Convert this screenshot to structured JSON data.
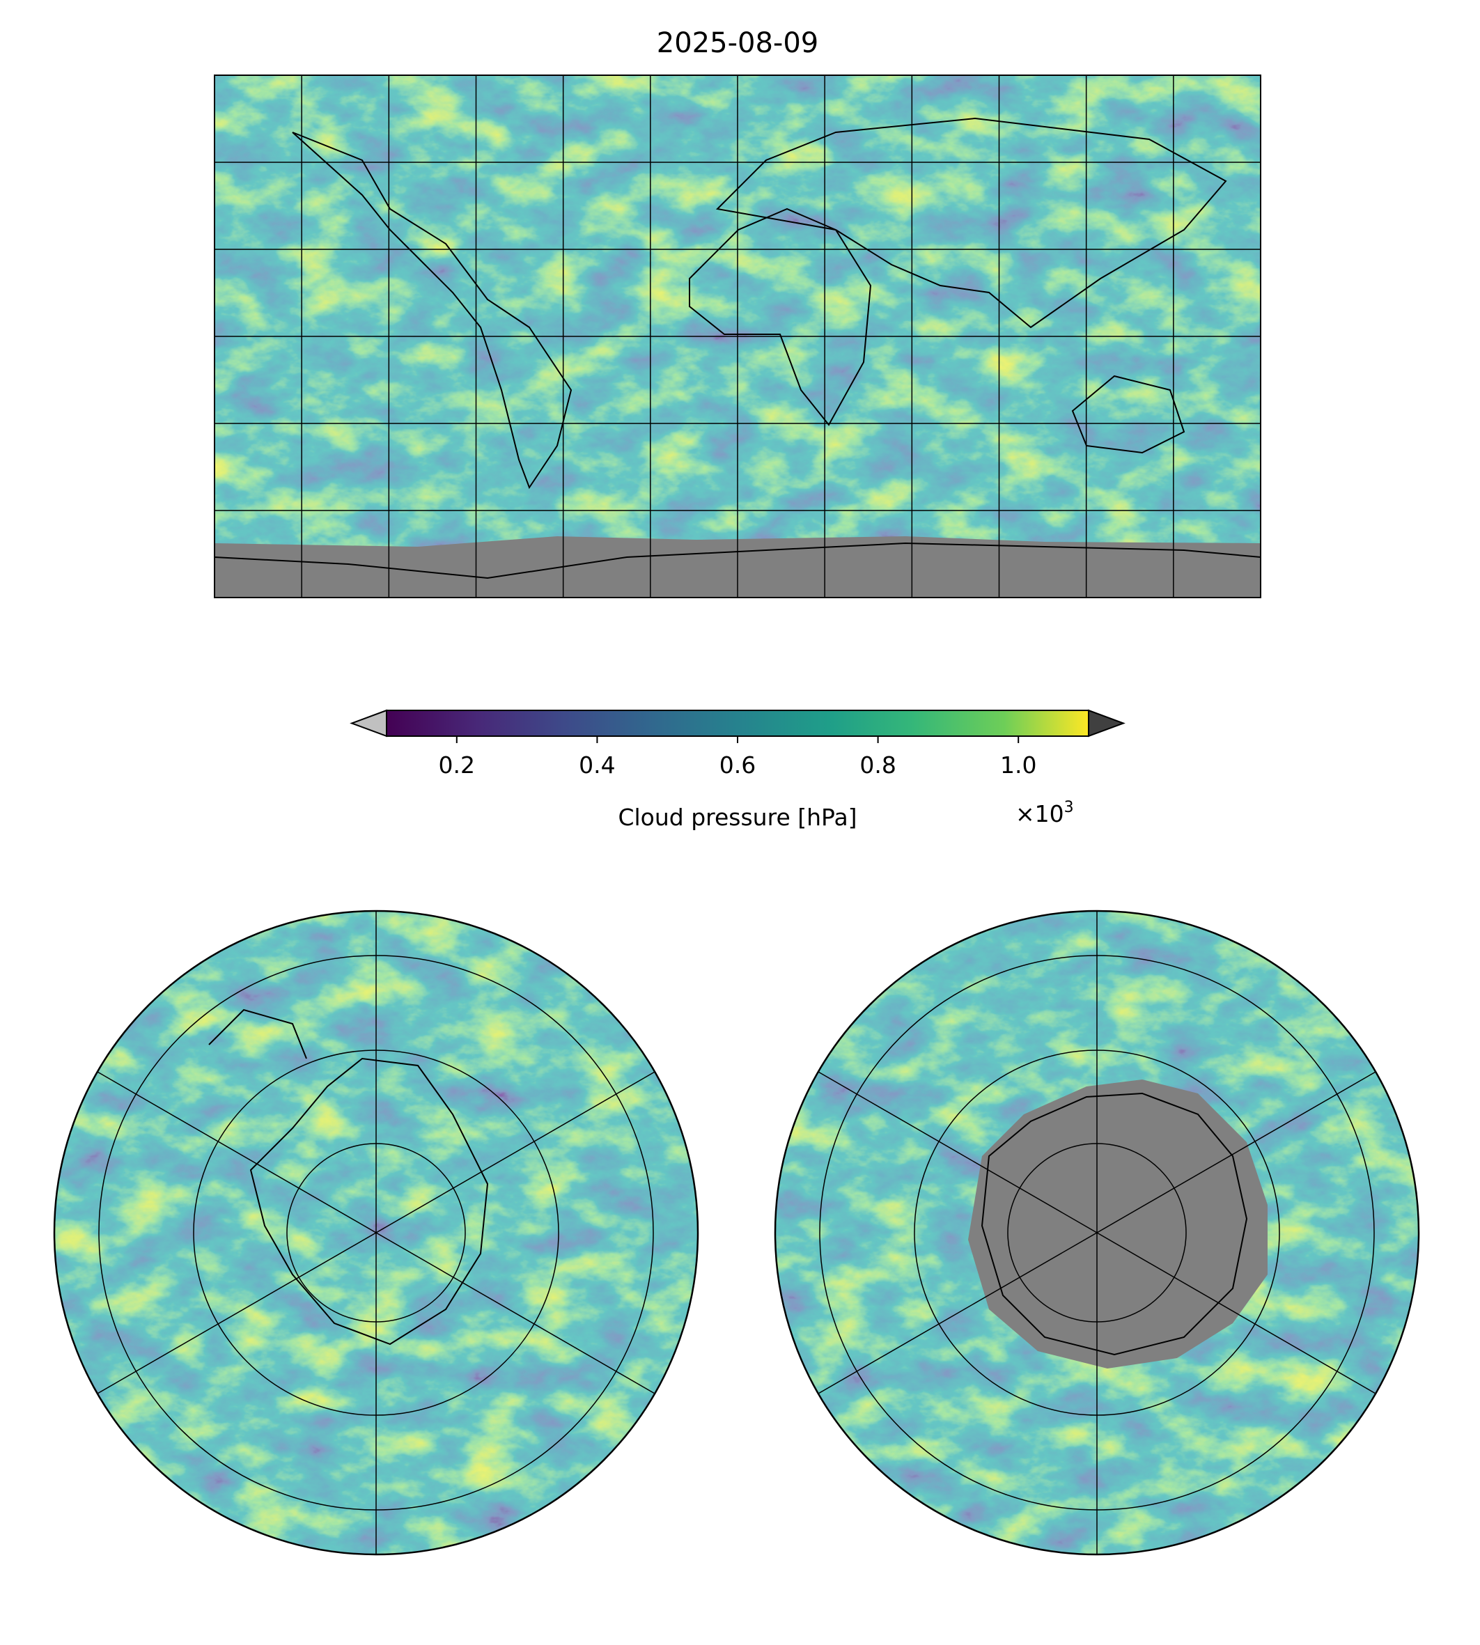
{
  "chart_data": {
    "type": "heatmap",
    "title": "2025-08-09",
    "panels": [
      {
        "name": "global",
        "projection": "PlateCarree",
        "gridlines": {
          "lon_step_deg": 30,
          "lat_lines_deg": [
            60,
            30,
            0,
            -30,
            -60
          ]
        },
        "no_data_region": "Antarctica"
      },
      {
        "name": "north-polar",
        "projection": "NorthPolarStereo",
        "meridian_step_deg": 60
      },
      {
        "name": "south-polar",
        "projection": "SouthPolarStereo",
        "meridian_step_deg": 60,
        "no_data_region": "Antarctica"
      }
    ],
    "colorbar": {
      "label": "Cloud pressure [hPa]",
      "colormap": "viridis",
      "range": [
        100,
        1100
      ],
      "ticks": [
        200,
        400,
        600,
        800,
        1000
      ],
      "tick_labels": [
        "0.2",
        "0.4",
        "0.6",
        "0.8",
        "1.0"
      ],
      "offset_label": "×10",
      "offset_exponent": "3",
      "extend": "both",
      "under_color": "#c0c0c0",
      "over_color": "#404040"
    },
    "no_data_color": "#808080"
  }
}
